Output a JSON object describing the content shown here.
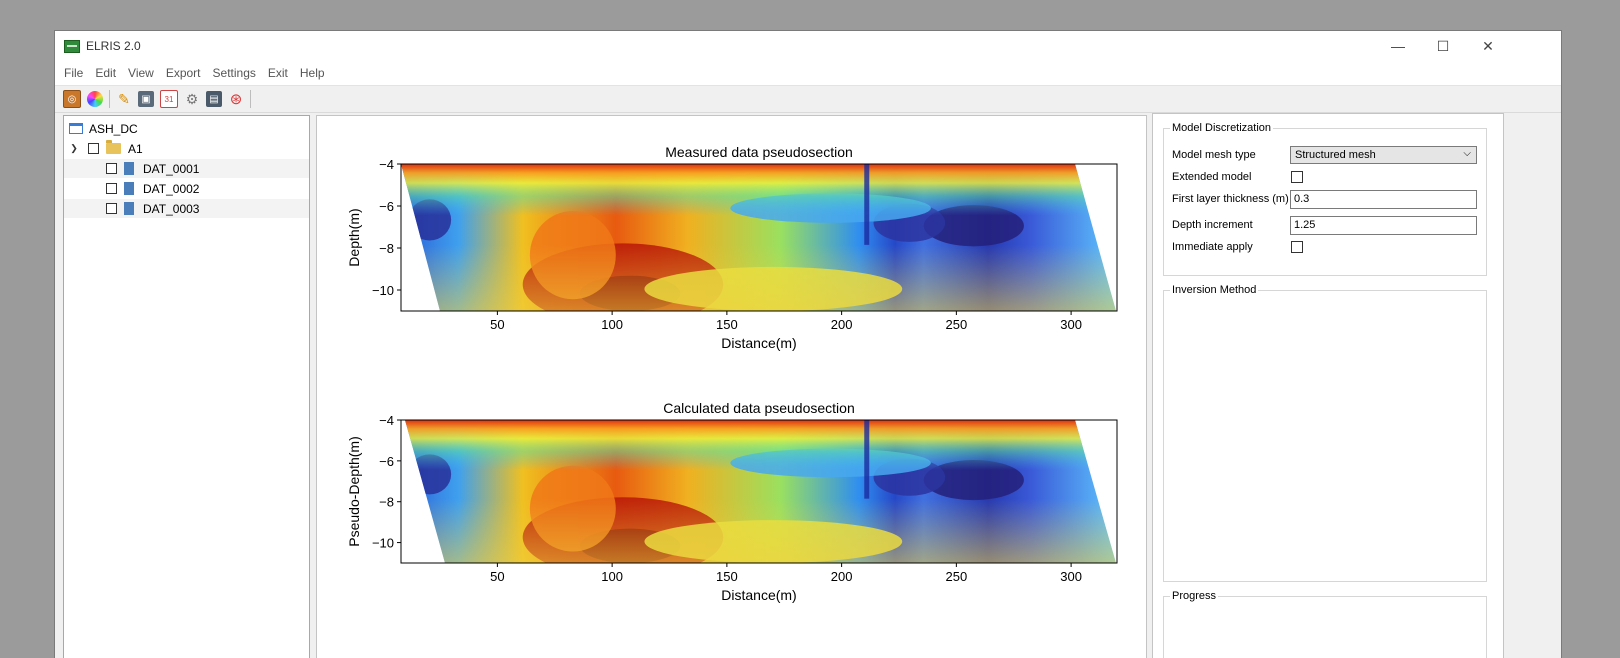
{
  "window": {
    "title": "ELRIS 2.0",
    "controls": {
      "minimize": "—",
      "maximize": "☐",
      "close": "✕"
    }
  },
  "menu": [
    "File",
    "Edit",
    "View",
    "Export",
    "Settings",
    "Exit",
    "Help"
  ],
  "toolbar": {
    "icons": [
      "project-icon",
      "color-wheel-icon",
      "pencil-icon",
      "screenshot-icon",
      "calendar-icon",
      "gear-icon",
      "printer-icon",
      "lifebuoy-icon"
    ]
  },
  "tree": {
    "root": "ASH_DC",
    "folder": "A1",
    "files": [
      "DAT_0001",
      "DAT_0002",
      "DAT_0003"
    ]
  },
  "plots": {
    "measured": {
      "title": "Measured data pseudosection",
      "ylabel": "Depth(m)",
      "xlabel": "Distance(m)",
      "xticks": [
        "50",
        "100",
        "150",
        "200",
        "250",
        "300"
      ],
      "yticks": [
        "−4",
        "−6",
        "−8",
        "−10"
      ]
    },
    "calculated": {
      "title": "Calculated data pseudosection",
      "ylabel": "Pseudo-Depth(m)",
      "xlabel": "Distance(m)",
      "xticks": [
        "50",
        "100",
        "150",
        "200",
        "250",
        "300"
      ],
      "yticks": [
        "−4",
        "−6",
        "−8",
        "−10"
      ]
    }
  },
  "settings": {
    "model_discretization": {
      "label": "Model Discretization",
      "mesh_type_label": "Model mesh type",
      "mesh_type_value": "Structured mesh",
      "extended_label": "Extended model",
      "extended_checked": false,
      "first_layer_label": "First layer thickness (m)",
      "first_layer_value": "0.3",
      "depth_increment_label": "Depth increment",
      "depth_increment_value": "1.25",
      "immediate_label": "Immediate apply",
      "immediate_checked": false
    },
    "inversion_method_label": "Inversion Method",
    "progress_label": "Progress"
  },
  "chart_data": [
    {
      "type": "heatmap",
      "title": "Measured data pseudosection",
      "xlabel": "Distance(m)",
      "ylabel": "Depth(m)",
      "xlim": [
        8,
        320
      ],
      "ylim": [
        -11,
        -4
      ],
      "xticks": [
        50,
        100,
        150,
        200,
        250,
        300
      ],
      "yticks": [
        -4,
        -6,
        -8,
        -10
      ],
      "colormap": "jet"
    },
    {
      "type": "heatmap",
      "title": "Calculated data pseudosection",
      "xlabel": "Distance(m)",
      "ylabel": "Pseudo-Depth(m)",
      "xlim": [
        8,
        320
      ],
      "ylim": [
        -11,
        -4
      ],
      "xticks": [
        50,
        100,
        150,
        200,
        250,
        300
      ],
      "yticks": [
        -4,
        -6,
        -8,
        -10
      ],
      "colormap": "jet"
    }
  ]
}
